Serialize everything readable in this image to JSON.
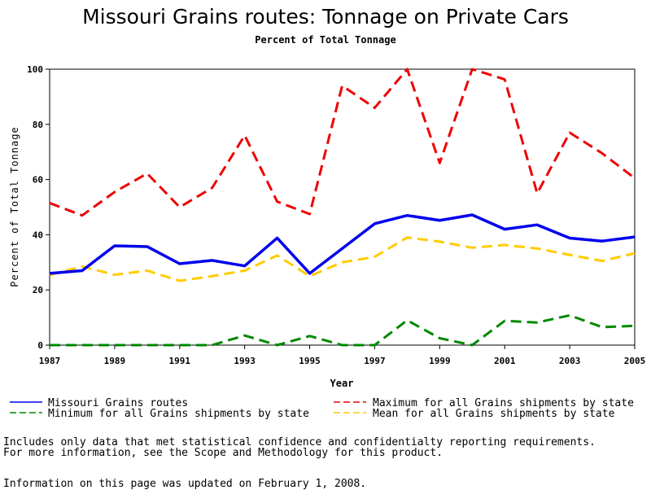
{
  "chart_data": {
    "type": "line",
    "title": "Missouri Grains routes: Tonnage on Private Cars",
    "subtitle": "Percent of Total Tonnage",
    "xlabel": "Year",
    "ylabel": "Percent of Total Tonnage",
    "ylim": [
      0,
      100
    ],
    "xlim": [
      1987,
      2005
    ],
    "x_ticks": [
      "1987",
      "1989",
      "1991",
      "1993",
      "1995",
      "1997",
      "1999",
      "2001",
      "2003",
      "2005"
    ],
    "y_ticks": [
      "0",
      "20",
      "40",
      "60",
      "80",
      "100"
    ],
    "x": [
      1987,
      1988,
      1989,
      1990,
      1991,
      1992,
      1993,
      1994,
      1995,
      1996,
      1997,
      1998,
      1999,
      2000,
      2001,
      2002,
      2003,
      2004,
      2005
    ],
    "series": [
      {
        "name": "Missouri Grains routes",
        "color": "#0000ee",
        "style": "solid",
        "values": [
          26,
          27,
          36,
          35.7,
          29.5,
          30.7,
          28.7,
          38.8,
          26,
          35,
          44,
          47,
          45.2,
          47.2,
          42,
          43.6,
          38.8,
          37.7,
          39.2
        ]
      },
      {
        "name": "Maximum for all Grains shipments by state",
        "color": "#ee0000",
        "style": "dashed",
        "values": [
          51.5,
          47,
          55.5,
          62.2,
          50,
          57,
          76,
          52,
          47.5,
          94,
          86,
          100,
          66,
          100,
          96.3,
          55,
          77,
          69.5,
          60.5
        ]
      },
      {
        "name": "Minimum for all Grains shipments by state",
        "color": "#008800",
        "style": "dashed",
        "values": [
          0,
          0,
          0,
          0,
          0,
          0,
          3.5,
          0,
          3.3,
          0,
          0,
          9,
          2.5,
          0,
          8.8,
          8.2,
          10.8,
          6.5,
          7
        ]
      },
      {
        "name": "Mean for all Grains shipments by state",
        "color": "#ffcc00",
        "style": "dashed",
        "values": [
          25.4,
          28.5,
          25.5,
          27,
          23.3,
          25,
          27,
          32.5,
          25,
          30,
          32,
          39,
          37.5,
          35.3,
          36.3,
          35,
          32.7,
          30.5,
          33.3
        ]
      }
    ],
    "legend": {
      "placement": "bottom",
      "entries": [
        "Missouri Grains routes",
        "Maximum for all Grains shipments by state",
        "Minimum for all Grains shipments by state",
        "Mean for all Grains shipments by state"
      ]
    }
  },
  "notes": {
    "line1": "Includes only data that met statistical confidence and confidentialty reporting requirements.",
    "line2": "For more information, see the Scope and Methodology for this product.",
    "updated": "Information on this page was updated on February 1, 2008."
  }
}
